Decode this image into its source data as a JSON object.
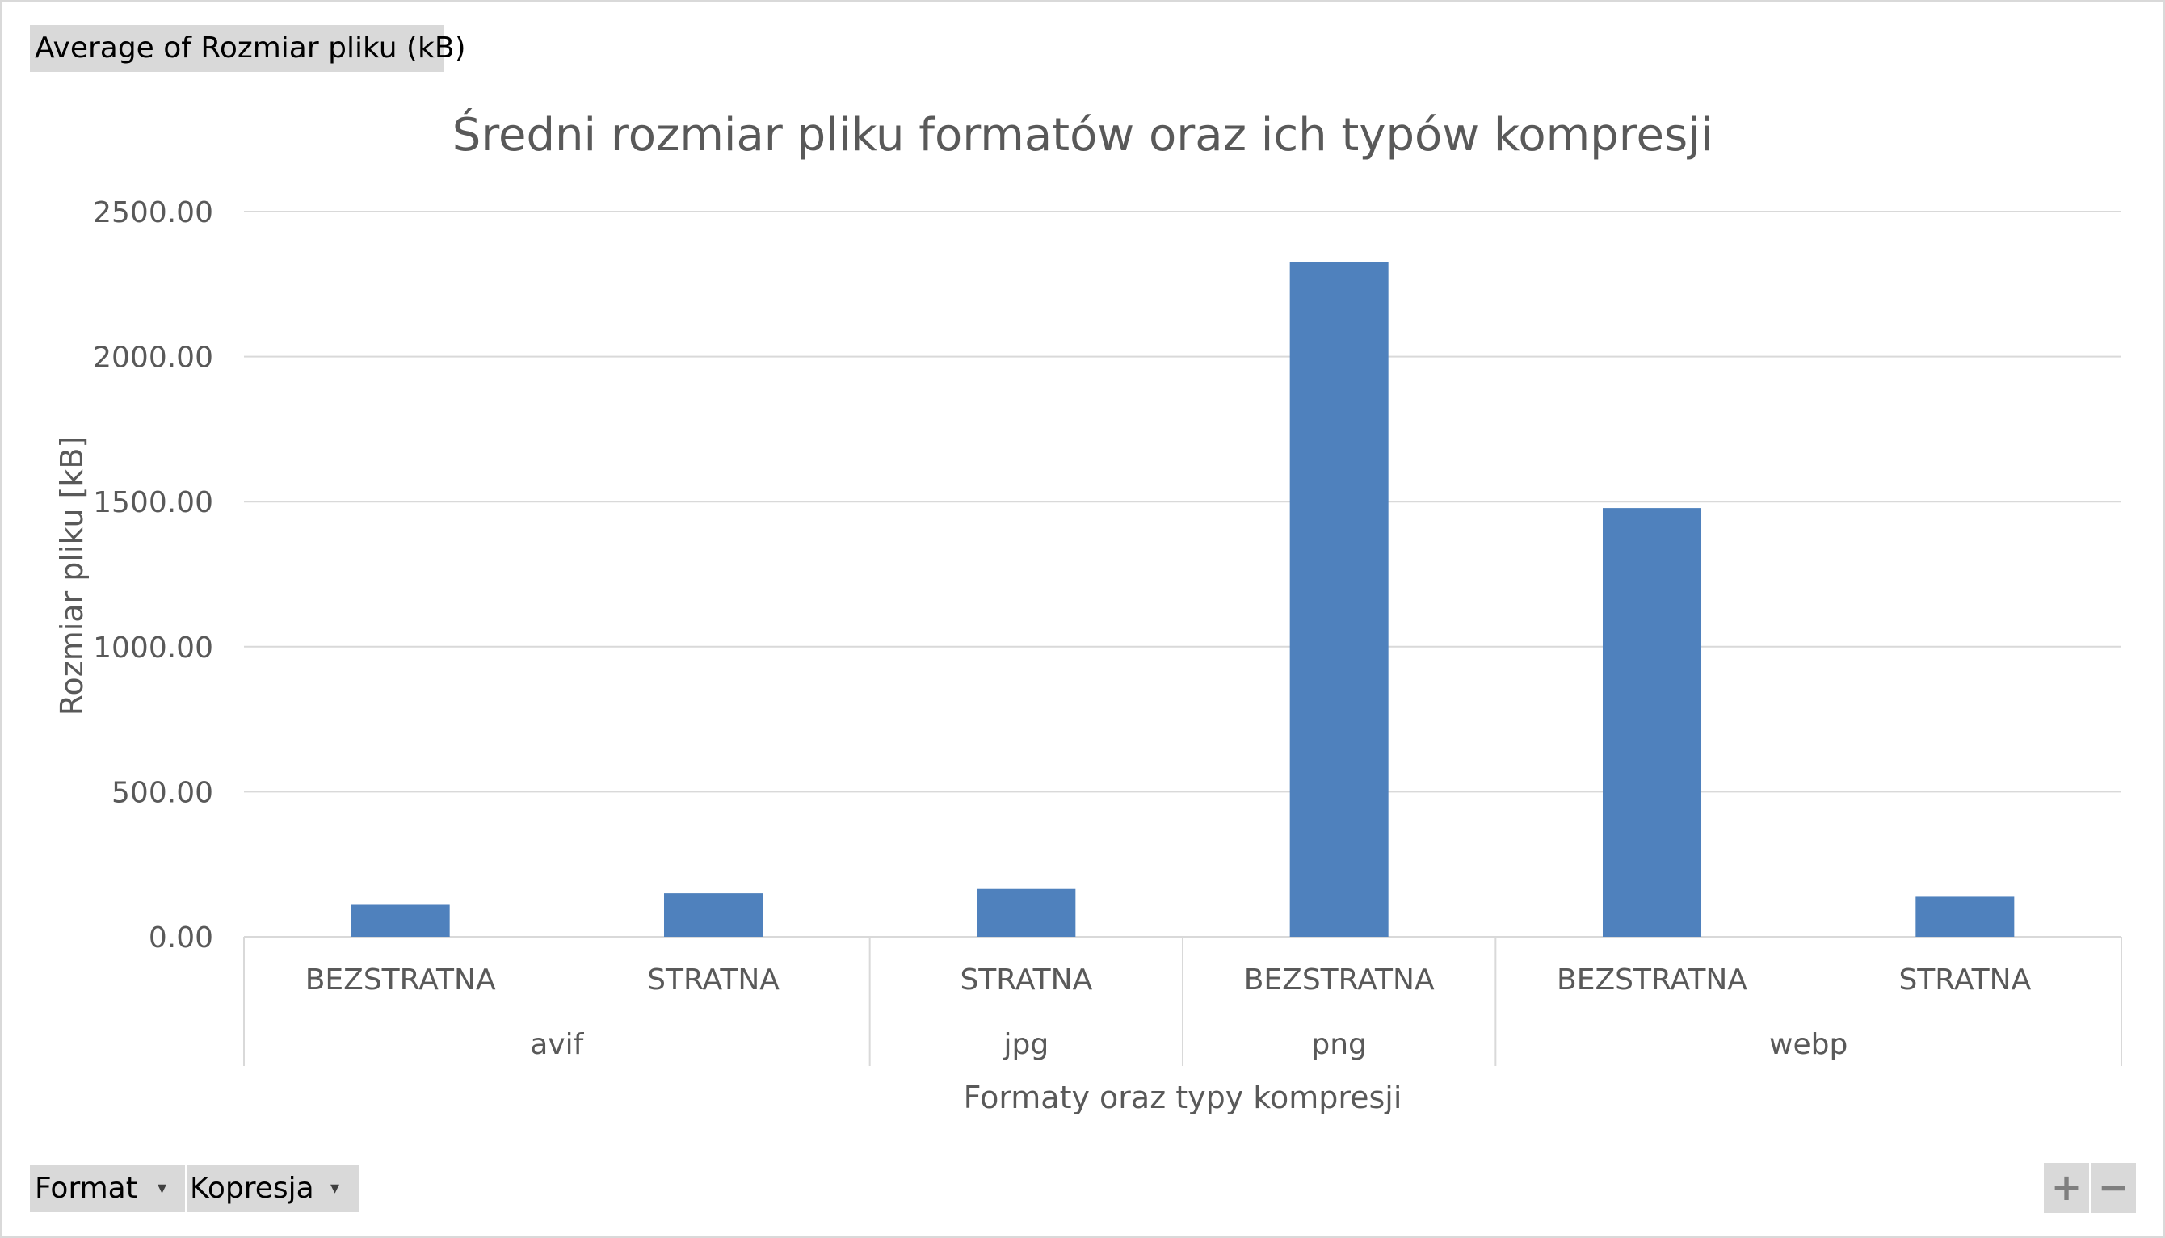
{
  "pivot": {
    "value_field_label": "Average of Rozmiar pliku (kB)",
    "row_fields": [
      {
        "label": "Format",
        "dropdown_icon": "dropdown-arrow-icon"
      },
      {
        "label": "Kopresja",
        "dropdown_icon": "dropdown-arrow-icon"
      }
    ],
    "zoom_buttons": {
      "expand": "+",
      "collapse": "−"
    }
  },
  "chart_data": {
    "type": "bar",
    "title": "Średni rozmiar pliku formatów oraz ich typów kompresji",
    "xlabel": "Formaty oraz typy kompresji",
    "ylabel": "Rozmiar pliku [kB]",
    "ylim": [
      0,
      2500
    ],
    "yticks": [
      "0.00",
      "500.00",
      "1000.00",
      "1500.00",
      "2000.00",
      "2500.00"
    ],
    "grid": true,
    "bar_color": "#4f81bd",
    "groups": [
      {
        "name": "avif",
        "categories": [
          "BEZSTRATNA",
          "STRATNA"
        ],
        "values": [
          110,
          150
        ]
      },
      {
        "name": "jpg",
        "categories": [
          "STRATNA"
        ],
        "values": [
          165
        ]
      },
      {
        "name": "png",
        "categories": [
          "BEZSTRATNA"
        ],
        "values": [
          2325
        ]
      },
      {
        "name": "webp",
        "categories": [
          "BEZSTRATNA",
          "STRATNA"
        ],
        "values": [
          1478,
          138
        ]
      }
    ]
  }
}
